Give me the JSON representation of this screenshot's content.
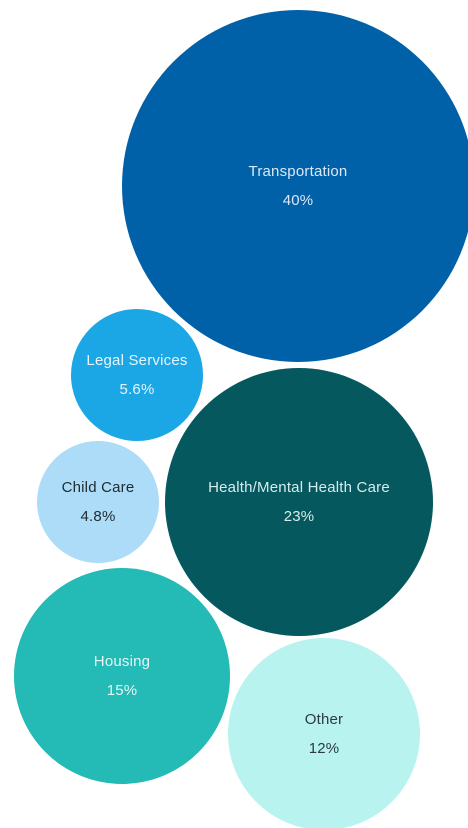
{
  "chart_data": {
    "type": "bubble",
    "items": [
      {
        "label": "Transportation",
        "value_text": "40%",
        "value": 40,
        "color": "#0061a8",
        "text_color": "#dbe9f5"
      },
      {
        "label": "Health/Mental Health Care",
        "value_text": "23%",
        "value": 23,
        "color": "#06585f",
        "text_color": "#d6ecec"
      },
      {
        "label": "Housing",
        "value_text": "15%",
        "value": 15,
        "color": "#24bab5",
        "text_color": "#e4f7f6"
      },
      {
        "label": "Other",
        "value_text": "12%",
        "value": 12,
        "color": "#b9f3f0",
        "text_color": "#2b3a40"
      },
      {
        "label": "Legal Services",
        "value_text": "5.6%",
        "value": 5.6,
        "color": "#1ba7e6",
        "text_color": "#e6f5fc"
      },
      {
        "label": "Child Care",
        "value_text": "4.8%",
        "value": 4.8,
        "color": "#acdcf7",
        "text_color": "#1f2a30"
      }
    ]
  }
}
